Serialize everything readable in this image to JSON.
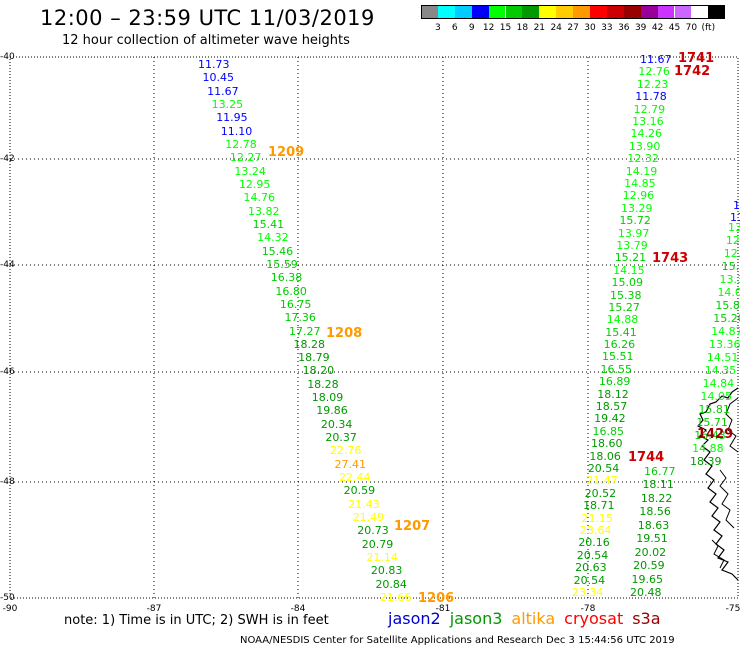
{
  "header": {
    "title": "12:00 – 23:59 UTC 11/03/2019",
    "subtitle": "12 hour collection of altimeter wave heights"
  },
  "scale": {
    "colors": [
      "#888888",
      "#00ffff",
      "#00ccff",
      "#0000ff",
      "#00ff00",
      "#00cc00",
      "#009900",
      "#ffff00",
      "#ffcc00",
      "#ff9900",
      "#ff0000",
      "#cc0000",
      "#990000",
      "#990099",
      "#cc33ff",
      "#cc66ff",
      "#ffffff",
      "#000000"
    ],
    "labels": [
      "3",
      "6",
      "9",
      "12",
      "15",
      "18",
      "21",
      "24",
      "27",
      "30",
      "33",
      "36",
      "39",
      "42",
      "45",
      "70",
      "(ft)"
    ]
  },
  "axes": {
    "lat_labels": [
      "-40",
      "-42",
      "-44",
      "-46",
      "-48",
      "-50"
    ],
    "lon_labels": [
      "-90",
      "-87",
      "-84",
      "-81",
      "-78",
      "-75"
    ]
  },
  "tracks": [
    {
      "name": "left",
      "items": [
        {
          "t": "11.73",
          "c": "#0000ff"
        },
        {
          "t": "10.45",
          "c": "#0000ff"
        },
        {
          "t": "11.67",
          "c": "#0000ff"
        },
        {
          "t": "13.25",
          "c": "#00ff00"
        },
        {
          "t": "11.95",
          "c": "#0000ff"
        },
        {
          "t": "11.10",
          "c": "#0000ff"
        },
        {
          "t": "12.78",
          "c": "#00ff00"
        },
        {
          "t": "12.27",
          "c": "#00ff00"
        },
        {
          "t": "13.24",
          "c": "#00ff00"
        },
        {
          "t": "12.95",
          "c": "#00ff00"
        },
        {
          "t": "14.76",
          "c": "#00ff00"
        },
        {
          "t": "13.82",
          "c": "#00ff00"
        },
        {
          "t": "15.41",
          "c": "#00cc00"
        },
        {
          "t": "14.32",
          "c": "#00ff00"
        },
        {
          "t": "15.46",
          "c": "#00cc00"
        },
        {
          "t": "15.59",
          "c": "#00cc00"
        },
        {
          "t": "16.38",
          "c": "#00cc00"
        },
        {
          "t": "16.80",
          "c": "#00cc00"
        },
        {
          "t": "16.75",
          "c": "#00cc00"
        },
        {
          "t": "17.36",
          "c": "#00cc00"
        },
        {
          "t": "17.27",
          "c": "#00cc00"
        },
        {
          "t": "18.28",
          "c": "#009900"
        },
        {
          "t": "18.79",
          "c": "#009900"
        },
        {
          "t": "18.20",
          "c": "#009900"
        },
        {
          "t": "18.28",
          "c": "#009900"
        },
        {
          "t": "18.09",
          "c": "#009900"
        },
        {
          "t": "19.86",
          "c": "#009900"
        },
        {
          "t": "20.34",
          "c": "#009900"
        },
        {
          "t": "20.37",
          "c": "#009900"
        },
        {
          "t": "22.76",
          "c": "#ffff00"
        },
        {
          "t": "27.41",
          "c": "#ff9900"
        },
        {
          "t": "22.44",
          "c": "#ffff00"
        },
        {
          "t": "20.59",
          "c": "#009900"
        },
        {
          "t": "21.43",
          "c": "#ffff00"
        },
        {
          "t": "21.49",
          "c": "#ffff00"
        },
        {
          "t": "20.73",
          "c": "#009900"
        },
        {
          "t": "20.79",
          "c": "#009900"
        },
        {
          "t": "21.14",
          "c": "#ffff00"
        },
        {
          "t": "20.83",
          "c": "#009900"
        },
        {
          "t": "20.84",
          "c": "#009900"
        },
        {
          "t": "21.66",
          "c": "#ffff00"
        }
      ]
    },
    {
      "name": "middle",
      "items": [
        {
          "t": "11.67",
          "c": "#0000ff"
        },
        {
          "t": "12.76",
          "c": "#00ff00"
        },
        {
          "t": "12.23",
          "c": "#00ff00"
        },
        {
          "t": "11.78",
          "c": "#0000ff"
        },
        {
          "t": "12.79",
          "c": "#00ff00"
        },
        {
          "t": "13.16",
          "c": "#00ff00"
        },
        {
          "t": "14.26",
          "c": "#00ff00"
        },
        {
          "t": "13.90",
          "c": "#00ff00"
        },
        {
          "t": "12.32",
          "c": "#00ff00"
        },
        {
          "t": "14.19",
          "c": "#00ff00"
        },
        {
          "t": "14.85",
          "c": "#00ff00"
        },
        {
          "t": "12.96",
          "c": "#00ff00"
        },
        {
          "t": "13.29",
          "c": "#00ff00"
        },
        {
          "t": "15.72",
          "c": "#00cc00"
        },
        {
          "t": "13.97",
          "c": "#00ff00"
        },
        {
          "t": "13.79",
          "c": "#00ff00"
        },
        {
          "t": "15.21",
          "c": "#00cc00"
        },
        {
          "t": "14.15",
          "c": "#00ff00"
        },
        {
          "t": "15.09",
          "c": "#00cc00"
        },
        {
          "t": "15.38",
          "c": "#00cc00"
        },
        {
          "t": "15.27",
          "c": "#00cc00"
        },
        {
          "t": "14.88",
          "c": "#00ff00"
        },
        {
          "t": "15.41",
          "c": "#00cc00"
        },
        {
          "t": "16.26",
          "c": "#00cc00"
        },
        {
          "t": "15.51",
          "c": "#00cc00"
        },
        {
          "t": "16.55",
          "c": "#00cc00"
        },
        {
          "t": "16.89",
          "c": "#00cc00"
        },
        {
          "t": "18.12",
          "c": "#009900"
        },
        {
          "t": "18.57",
          "c": "#009900"
        },
        {
          "t": "19.42",
          "c": "#009900"
        },
        {
          "t": "16.85",
          "c": "#00cc00"
        },
        {
          "t": "18.60",
          "c": "#009900"
        },
        {
          "t": "18.06",
          "c": "#009900"
        },
        {
          "t": "20.54",
          "c": "#009900"
        },
        {
          "t": "21.47",
          "c": "#ffff00"
        },
        {
          "t": "20.52",
          "c": "#009900"
        },
        {
          "t": "18.71",
          "c": "#009900"
        },
        {
          "t": "21.15",
          "c": "#ffff00"
        },
        {
          "t": "23.64",
          "c": "#ffff00"
        },
        {
          "t": "20.16",
          "c": "#009900"
        },
        {
          "t": "20.54",
          "c": "#009900"
        },
        {
          "t": "20.63",
          "c": "#009900"
        },
        {
          "t": "20.54",
          "c": "#009900"
        },
        {
          "t": "23.34",
          "c": "#ffff00"
        }
      ]
    },
    {
      "name": "lower-right",
      "items": [
        {
          "t": "16.77",
          "c": "#00cc00"
        },
        {
          "t": "18.11",
          "c": "#009900"
        },
        {
          "t": "18.22",
          "c": "#009900"
        },
        {
          "t": "18.56",
          "c": "#009900"
        },
        {
          "t": "18.63",
          "c": "#009900"
        },
        {
          "t": "19.51",
          "c": "#009900"
        },
        {
          "t": "20.02",
          "c": "#009900"
        },
        {
          "t": "20.59",
          "c": "#009900"
        },
        {
          "t": "19.65",
          "c": "#009900"
        },
        {
          "t": "20.48",
          "c": "#009900"
        }
      ]
    },
    {
      "name": "right",
      "items": [
        {
          "t": "13.3",
          "c": "#00ff00"
        },
        {
          "t": "12.",
          "c": "#00ff00"
        },
        {
          "t": "12.",
          "c": "#00ff00"
        },
        {
          "t": "15.57",
          "c": "#00cc00"
        },
        {
          "t": "13.3",
          "c": "#00ff00"
        },
        {
          "t": "14.04",
          "c": "#00ff00"
        },
        {
          "t": "15.87",
          "c": "#00cc00"
        },
        {
          "t": "15.20",
          "c": "#00cc00"
        },
        {
          "t": "14.87",
          "c": "#00ff00"
        },
        {
          "t": "13.36",
          "c": "#00ff00"
        },
        {
          "t": "14.51",
          "c": "#00ff00"
        },
        {
          "t": "14.35",
          "c": "#00ff00"
        },
        {
          "t": "14.84",
          "c": "#00ff00"
        },
        {
          "t": "14.05",
          "c": "#00ff00"
        },
        {
          "t": "15.81",
          "c": "#00cc00"
        },
        {
          "t": "15.71",
          "c": "#00cc00"
        },
        {
          "t": "16.43",
          "c": "#00cc00"
        },
        {
          "t": "14.88",
          "c": "#00ff00"
        },
        {
          "t": "18.39",
          "c": "#009900"
        }
      ]
    }
  ],
  "extra_values": [
    {
      "t": "1",
      "c": "#0000ff"
    },
    {
      "t": "11",
      "c": "#0000ff"
    }
  ],
  "time_labels": [
    {
      "t": "1209",
      "c": "#ff9900"
    },
    {
      "t": "1208",
      "c": "#ff9900"
    },
    {
      "t": "1207",
      "c": "#ff9900"
    },
    {
      "t": "1206",
      "c": "#ff9900"
    },
    {
      "t": "1741",
      "c": "#cc0000"
    },
    {
      "t": "1742",
      "c": "#cc0000"
    },
    {
      "t": "1743",
      "c": "#cc0000"
    },
    {
      "t": "1744",
      "c": "#cc0000"
    },
    {
      "t": "1429",
      "c": "#990000"
    }
  ],
  "note": "note:  1) Time is in UTC; 2) SWH is in feet",
  "legend": [
    {
      "name": "jason2",
      "c": "#0000cc"
    },
    {
      "name": "jason3",
      "c": "#009900"
    },
    {
      "name": "altika",
      "c": "#ff9900"
    },
    {
      "name": "cryosat",
      "c": "#ff0000"
    },
    {
      "name": "s3a",
      "c": "#990000"
    }
  ],
  "footer": "NOAA/NESDIS Center for Satellite Applications and Research    Dec  3 15:44:56 UTC 2019"
}
